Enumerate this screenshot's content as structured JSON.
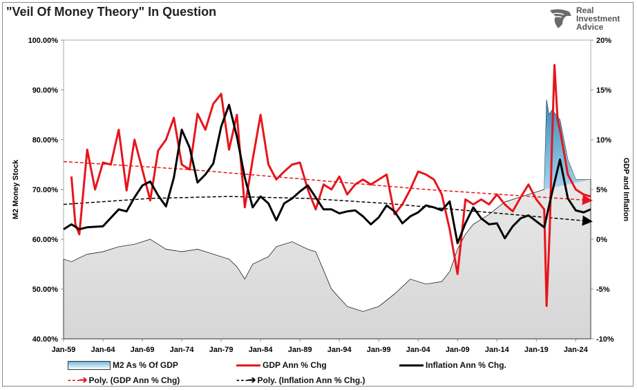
{
  "chart_data": {
    "type": "line",
    "title": "\"Veil Of Money Theory\" In Question",
    "ylabel": "M2 Money Stock",
    "y2label": "GDP and Inflation",
    "xlim": [
      1959,
      2025.9
    ],
    "ylim": [
      40,
      100
    ],
    "y2lim": [
      -10,
      20
    ],
    "x_ticks": [
      "Jan-59",
      "Jan-64",
      "Jan-69",
      "Jan-74",
      "Jan-79",
      "Jan-84",
      "Jan-89",
      "Jan-94",
      "Jan-99",
      "Jan-04",
      "Jan-09",
      "Jan-14",
      "Jan-19",
      "Jan-24"
    ],
    "y_ticks": [
      "40.00%",
      "50.00%",
      "60.00%",
      "70.00%",
      "80.00%",
      "90.00%",
      "100.00%"
    ],
    "y2_ticks": [
      "-10%",
      "-5%",
      "0%",
      "5%",
      "10%",
      "15%",
      "20%"
    ],
    "grid": false,
    "legend_position": "bottom",
    "series": [
      {
        "name": "M2 As % Of GDP",
        "axis": "left",
        "kind": "area",
        "color": "#2e8fc4",
        "x": [
          1959,
          1960,
          1962,
          1964,
          1966,
          1968,
          1970,
          1972,
          1974,
          1976,
          1978,
          1979,
          1980,
          1981,
          1982,
          1983,
          1985,
          1986,
          1988,
          1990,
          1991,
          1993,
          1995,
          1997,
          1999,
          2001,
          2003,
          2005,
          2007,
          2008,
          2009,
          2010,
          2011,
          2013,
          2015,
          2017,
          2019,
          2020.0,
          2020.3,
          2020.6,
          2021,
          2022,
          2023,
          2024,
          2025,
          2025.9
        ],
        "y": [
          56,
          55.5,
          57,
          57.5,
          58.5,
          59,
          60,
          58,
          57.5,
          58,
          57,
          56.5,
          56,
          54.5,
          52,
          55,
          56.5,
          58.5,
          59.5,
          58,
          57.5,
          50,
          46.5,
          45.5,
          46.5,
          49,
          52,
          51,
          51.5,
          53.5,
          58,
          61,
          63,
          65,
          67.5,
          68.5,
          69.5,
          70,
          88,
          85,
          86,
          84,
          76,
          72,
          72,
          72
        ]
      },
      {
        "name": "GDP Ann % Chg",
        "axis": "right",
        "kind": "line",
        "color": "#e8141a",
        "x": [
          1960,
          1960.5,
          1961,
          1962,
          1963,
          1964,
          1965,
          1966,
          1967,
          1968,
          1969,
          1970,
          1971,
          1972,
          1973,
          1974,
          1975,
          1976,
          1977,
          1978,
          1979,
          1980,
          1981,
          1982,
          1983,
          1984,
          1985,
          1986,
          1987,
          1988,
          1989,
          1990,
          1991,
          1992,
          1993,
          1994,
          1995,
          1996,
          1997,
          1998,
          1999,
          2000,
          2001,
          2002,
          2003,
          2004,
          2005,
          2006,
          2007,
          2008,
          2009,
          2010,
          2011,
          2012,
          2013,
          2014,
          2015,
          2016,
          2017,
          2018,
          2019,
          2020.0,
          2020.3,
          2020.7,
          2021.0,
          2021.3,
          2021.7,
          2022,
          2023,
          2024,
          2025,
          2025.9
        ],
        "y": [
          6.3,
          1.5,
          0.5,
          9,
          5,
          7.7,
          7.5,
          11,
          4.9,
          10,
          7,
          3.9,
          8.9,
          10,
          12.2,
          7.5,
          7,
          12.6,
          11,
          13.6,
          14.6,
          9,
          12.5,
          3.2,
          8,
          12.5,
          7.5,
          6,
          6.8,
          7.5,
          7.7,
          5,
          3,
          5.5,
          5,
          6.3,
          4.5,
          5.5,
          6,
          5.5,
          6,
          6.5,
          2.5,
          3.5,
          5,
          6.8,
          6.5,
          6,
          4.5,
          1,
          -3.5,
          4,
          3.5,
          4,
          3.5,
          4.5,
          3.5,
          2.8,
          4.2,
          5.5,
          4,
          3,
          -6.7,
          1,
          10,
          17.5,
          12,
          11,
          6.5,
          5,
          4.5,
          4.3
        ]
      },
      {
        "name": "Inflation Ann % Chg.",
        "axis": "right",
        "kind": "line",
        "color": "#000000",
        "x": [
          1959,
          1960,
          1961,
          1962,
          1964,
          1966,
          1967,
          1968,
          1969,
          1970,
          1971,
          1972,
          1973,
          1974,
          1975,
          1976,
          1977,
          1978,
          1979,
          1980,
          1981,
          1982,
          1983,
          1984,
          1985,
          1986,
          1987,
          1988,
          1989,
          1990,
          1991,
          1992,
          1993,
          1994,
          1995,
          1996,
          1997,
          1998,
          1999,
          2000,
          2001,
          2002,
          2003,
          2004,
          2005,
          2006,
          2007,
          2008,
          2009,
          2010,
          2011,
          2012,
          2013,
          2014,
          2015,
          2016,
          2017,
          2018,
          2019,
          2020,
          2021,
          2022,
          2023,
          2024,
          2025,
          2025.9
        ],
        "y": [
          1,
          1.5,
          1,
          1.2,
          1.3,
          3,
          2.8,
          4.2,
          5.4,
          5.8,
          4.4,
          3.3,
          6.2,
          11,
          9.2,
          5.7,
          6.5,
          7.6,
          11.3,
          13.5,
          10.3,
          6.2,
          3.2,
          4.3,
          3.6,
          1.9,
          3.6,
          4.1,
          4.8,
          5.4,
          4.2,
          3,
          3,
          2.6,
          2.8,
          2.9,
          2.3,
          1.5,
          2.2,
          3.4,
          2.8,
          1.6,
          2.3,
          2.7,
          3.4,
          3.2,
          2.9,
          3.8,
          -0.4,
          1.6,
          3.2,
          2.1,
          1.5,
          1.6,
          0.1,
          1.3,
          2.1,
          2.4,
          1.8,
          1.2,
          4.7,
          8,
          4.1,
          2.9,
          2.7,
          3
        ]
      },
      {
        "name": "Poly. (GDP Ann % Chg)",
        "axis": "right",
        "kind": "trend",
        "color": "#e8141a",
        "x": [
          1959,
          1975,
          1990,
          2005,
          2025.9
        ],
        "y": [
          7.8,
          7.0,
          6.0,
          5.0,
          3.9
        ]
      },
      {
        "name": "Poly. (Inflation Ann % Chg.)",
        "axis": "right",
        "kind": "trend",
        "color": "#000000",
        "x": [
          1959,
          1970,
          1980,
          1990,
          2000,
          2010,
          2025.9
        ],
        "y": [
          3.5,
          4.1,
          4.3,
          4.1,
          3.6,
          2.9,
          1.8
        ]
      }
    ]
  },
  "logo": {
    "line1": "Real",
    "line2": "Investment",
    "line3": "Advice"
  }
}
